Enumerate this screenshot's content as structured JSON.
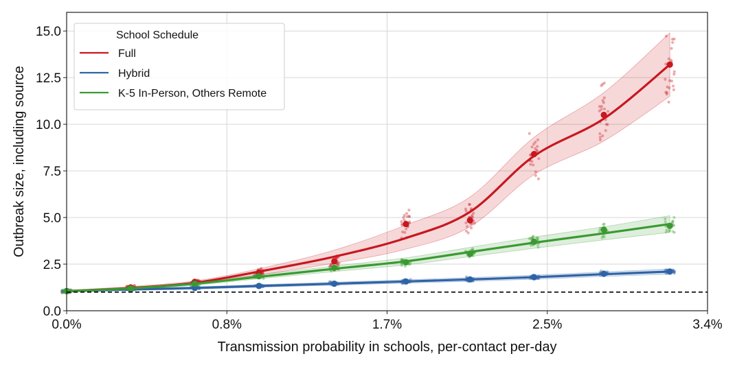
{
  "chart_data": {
    "type": "line",
    "xlabel": "Transmission probability in schools, per-contact per-day",
    "ylabel": "Outbreak size, including source",
    "xlim": [
      0,
      3.4
    ],
    "ylim": [
      0,
      16
    ],
    "x_ticks": [
      {
        "value": 0,
        "label": "0.0%"
      },
      {
        "value": 0.85,
        "label": "0.8%"
      },
      {
        "value": 1.7,
        "label": "1.7%"
      },
      {
        "value": 2.55,
        "label": "2.5%"
      },
      {
        "value": 3.4,
        "label": "3.4%"
      }
    ],
    "y_ticks": [
      {
        "value": 0,
        "label": "0.0"
      },
      {
        "value": 2.5,
        "label": "2.5"
      },
      {
        "value": 5,
        "label": "5.0"
      },
      {
        "value": 7.5,
        "label": "7.5"
      },
      {
        "value": 10,
        "label": "10.0"
      },
      {
        "value": 12.5,
        "label": "12.5"
      },
      {
        "value": 15,
        "label": "15.0"
      }
    ],
    "grid": true,
    "reference_line": {
      "y": 1.0,
      "style": "dashed",
      "color": "#000000"
    },
    "legend": {
      "title": "School Schedule",
      "placement": "top-left"
    },
    "x": [
      0,
      0.34,
      0.68,
      1.02,
      1.42,
      1.8,
      2.14,
      2.48,
      2.85,
      3.2
    ],
    "series": [
      {
        "name": "Full",
        "color": "#c8171f",
        "values": [
          1.05,
          1.25,
          1.55,
          2.05,
          2.65,
          4.65,
          4.85,
          8.4,
          10.5,
          13.2
        ],
        "line": [
          1.05,
          1.22,
          1.5,
          2.1,
          2.9,
          3.9,
          5.3,
          8.3,
          10.3,
          13.2
        ],
        "band_low": [
          1.0,
          1.15,
          1.42,
          1.92,
          2.55,
          3.3,
          4.5,
          7.3,
          9.1,
          11.5
        ],
        "band_high": [
          1.1,
          1.3,
          1.6,
          2.25,
          3.25,
          4.6,
          6.1,
          9.3,
          11.7,
          14.9
        ]
      },
      {
        "name": "Hybrid",
        "color": "#2e63a6",
        "values": [
          1.05,
          1.15,
          1.22,
          1.33,
          1.45,
          1.57,
          1.68,
          1.8,
          1.98,
          2.1
        ],
        "line": [
          1.05,
          1.14,
          1.22,
          1.33,
          1.45,
          1.57,
          1.68,
          1.8,
          1.96,
          2.1
        ],
        "band_low": [
          1.0,
          1.09,
          1.16,
          1.26,
          1.37,
          1.48,
          1.58,
          1.69,
          1.84,
          1.96
        ],
        "band_high": [
          1.1,
          1.19,
          1.28,
          1.4,
          1.53,
          1.66,
          1.78,
          1.91,
          2.08,
          2.24
        ]
      },
      {
        "name": "K-5 In-Person, Others Remote",
        "color": "#3a9a32",
        "values": [
          1.05,
          1.2,
          1.45,
          1.85,
          2.3,
          2.6,
          3.05,
          3.7,
          4.35,
          4.55
        ],
        "line": [
          1.05,
          1.2,
          1.45,
          1.82,
          2.25,
          2.65,
          3.15,
          3.65,
          4.15,
          4.65
        ],
        "band_low": [
          1.0,
          1.14,
          1.37,
          1.71,
          2.1,
          2.46,
          2.9,
          3.35,
          3.8,
          4.2
        ],
        "band_high": [
          1.1,
          1.26,
          1.53,
          1.93,
          2.4,
          2.84,
          3.4,
          3.95,
          4.5,
          5.1
        ]
      }
    ]
  }
}
